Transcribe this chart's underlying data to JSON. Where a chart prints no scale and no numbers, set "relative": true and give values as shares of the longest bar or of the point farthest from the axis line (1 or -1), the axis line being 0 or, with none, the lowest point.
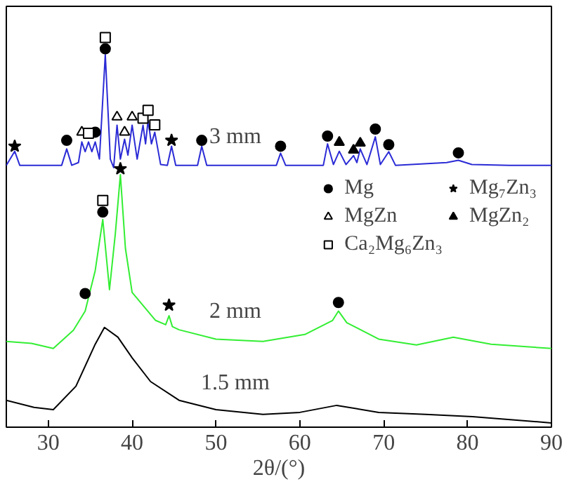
{
  "chart_data": {
    "type": "line",
    "relative": true,
    "xlabel": "2θ/(°)",
    "xlim": [
      25,
      90
    ],
    "xticks": [
      30,
      40,
      50,
      60,
      70,
      80,
      90
    ],
    "grid": false,
    "legend": "right",
    "series": [
      {
        "name": "3 mm",
        "color": "#2b2bd6",
        "x": [
          25,
          26.0,
          26.6,
          31.6,
          32.2,
          32.8,
          33.6,
          34.0,
          34.4,
          34.8,
          35.2,
          35.6,
          36.1,
          36.8,
          37.4,
          37.8,
          38.2,
          38.6,
          39.1,
          39.5,
          40.0,
          40.6,
          41.3,
          41.6,
          41.9,
          42.3,
          42.7,
          43.4,
          44.2,
          44.7,
          45.2,
          47.8,
          48.3,
          48.9,
          57.2,
          57.7,
          58.3,
          62.8,
          63.3,
          64.0,
          64.7,
          65.5,
          66.4,
          66.8,
          67.2,
          68.0,
          69.0,
          69.6,
          70.6,
          71.4,
          77.5,
          78.9,
          80.5,
          85,
          90
        ],
        "values": [
          0.672,
          0.708,
          0.672,
          0.672,
          0.714,
          0.672,
          0.679,
          0.732,
          0.707,
          0.732,
          0.707,
          0.732,
          0.688,
          0.956,
          0.688,
          0.666,
          0.775,
          0.688,
          0.739,
          0.698,
          0.775,
          0.688,
          0.775,
          0.727,
          0.787,
          0.727,
          0.757,
          0.674,
          0.672,
          0.721,
          0.672,
          0.672,
          0.721,
          0.672,
          0.672,
          0.703,
          0.672,
          0.672,
          0.727,
          0.674,
          0.708,
          0.674,
          0.697,
          0.679,
          0.714,
          0.674,
          0.745,
          0.674,
          0.707,
          0.672,
          0.679,
          0.685,
          0.674,
          0.672,
          0.672
        ]
      },
      {
        "name": "2 mm",
        "color": "#33ee33",
        "x": [
          25,
          28,
          30.6,
          33,
          34.4,
          35.6,
          36.5,
          37.3,
          38.0,
          38.6,
          39.2,
          40,
          42.8,
          44.0,
          44.4,
          44.8,
          45.6,
          50,
          55.6,
          60.6,
          63.9,
          64.6,
          65.6,
          69.4,
          73.9,
          78.3,
          82.8,
          90
        ],
        "values": [
          0.22,
          0.215,
          0.202,
          0.249,
          0.298,
          0.402,
          0.533,
          0.353,
          0.497,
          0.648,
          0.459,
          0.346,
          0.274,
          0.263,
          0.286,
          0.258,
          0.25,
          0.226,
          0.22,
          0.238,
          0.274,
          0.298,
          0.268,
          0.226,
          0.211,
          0.231,
          0.213,
          0.202
        ]
      },
      {
        "name": "1.5 mm",
        "color": "#000000",
        "x": [
          25,
          28.3,
          30.6,
          33.3,
          35.6,
          36.7,
          38.3,
          40,
          42.2,
          45.6,
          50,
          55.6,
          60,
          64.4,
          69.4,
          75,
          80.6,
          90
        ],
        "values": [
          0.069,
          0.051,
          0.045,
          0.105,
          0.213,
          0.256,
          0.231,
          0.178,
          0.117,
          0.069,
          0.045,
          0.033,
          0.038,
          0.056,
          0.038,
          0.033,
          0.027,
          0.011
        ]
      },
      {
        "type": "scatter",
        "name": "Mg",
        "marker": "circle",
        "color": "#000000",
        "x": [
          32.2,
          35.6,
          36.8,
          48.3,
          57.7,
          63.3,
          69.0,
          70.6,
          78.9,
          34.4,
          36.5,
          64.6
        ],
        "values": [
          0.736,
          0.757,
          0.971,
          0.736,
          0.721,
          0.747,
          0.765,
          0.725,
          0.704,
          0.343,
          0.552,
          0.32
        ]
      },
      {
        "type": "scatter",
        "name": "MgZn",
        "marker": "triangle",
        "color": "#ffffff",
        "x": [
          34.0,
          38.2,
          39.1,
          40.0
        ],
        "values": [
          0.757,
          0.796,
          0.757,
          0.796
        ]
      },
      {
        "type": "scatter",
        "name": "Ca₂Mg₆Zn₃",
        "marker": "square",
        "color": "#ffffff",
        "x": [
          34.8,
          36.8,
          41.3,
          41.9,
          42.7,
          36.5
        ],
        "values": [
          0.754,
          1,
          0.793,
          0.813,
          0.776,
          0.582
        ]
      },
      {
        "type": "scatter",
        "name": "Mg₇Zn₃",
        "marker": "star",
        "color": "#000000",
        "x": [
          26.0,
          44.7,
          38.6,
          44.4
        ],
        "values": [
          0.721,
          0.736,
          0.663,
          0.313
        ]
      },
      {
        "type": "scatter",
        "name": "MgZn₂",
        "marker": "triangle",
        "color": "#000000",
        "x": [
          64.7,
          66.4,
          67.2
        ],
        "values": [
          0.731,
          0.711,
          0.729
        ]
      }
    ]
  }
}
